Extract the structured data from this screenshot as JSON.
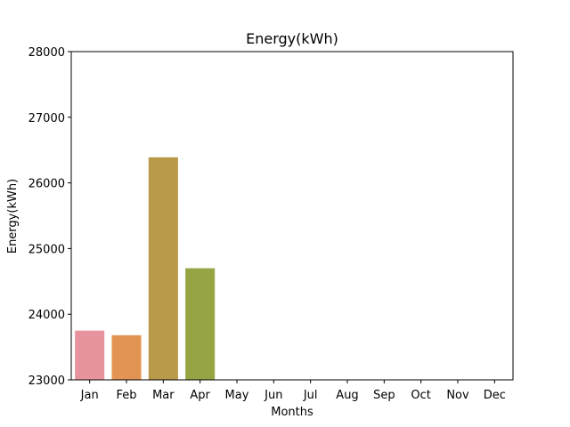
{
  "chart_data": {
    "type": "bar",
    "title": "Energy(kWh)",
    "xlabel": "Months",
    "ylabel": "Energy(kWh)",
    "categories": [
      "Jan",
      "Feb",
      "Mar",
      "Apr",
      "May",
      "Jun",
      "Jul",
      "Aug",
      "Sep",
      "Oct",
      "Nov",
      "Dec"
    ],
    "values": [
      23750,
      23680,
      26390,
      24700,
      null,
      null,
      null,
      null,
      null,
      null,
      null,
      null
    ],
    "ylim": [
      23000,
      28000
    ],
    "yticks": [
      "23000",
      "24000",
      "25000",
      "26000",
      "27000",
      "28000"
    ],
    "colors": [
      "#e8949f",
      "#e29452",
      "#b99a48",
      "#96a444"
    ],
    "grid": false,
    "legend": "none"
  }
}
